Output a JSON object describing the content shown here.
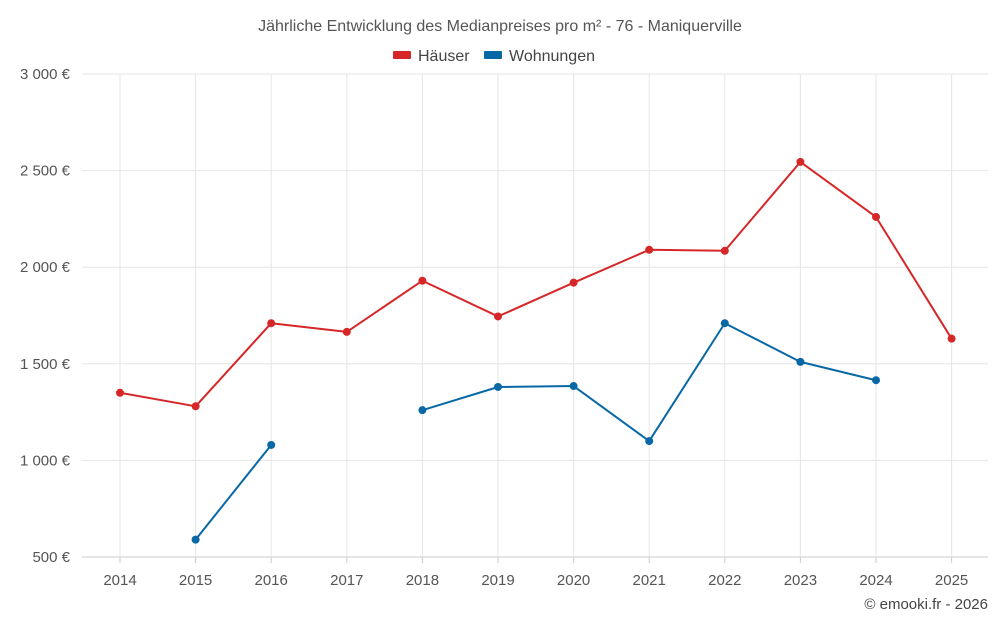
{
  "chart_data": {
    "type": "line",
    "title": "Jährliche Entwicklung des Medianpreises pro m² - 76 - Maniquerville",
    "categories": [
      "2014",
      "2015",
      "2016",
      "2017",
      "2018",
      "2019",
      "2020",
      "2021",
      "2022",
      "2023",
      "2024",
      "2025"
    ],
    "ylim": [
      500,
      3000
    ],
    "yticks": [
      500,
      1000,
      1500,
      2000,
      2500,
      3000
    ],
    "ytick_labels": [
      "500 €",
      "1 000 €",
      "1 500 €",
      "2 000 €",
      "2 500 €",
      "3 000 €"
    ],
    "grid": true,
    "legend_position": "top-center",
    "series": [
      {
        "name": "Häuser",
        "color": "#d62728",
        "values": [
          1350,
          1280,
          1710,
          1665,
          1930,
          1745,
          1920,
          2090,
          2085,
          2545,
          2260,
          1630
        ]
      },
      {
        "name": "Wohnungen",
        "color": "#0868a6",
        "values": [
          null,
          590,
          1080,
          null,
          1260,
          1380,
          1385,
          1100,
          1710,
          1510,
          1415,
          null
        ]
      }
    ],
    "credit": "© emooki.fr - 2026"
  }
}
